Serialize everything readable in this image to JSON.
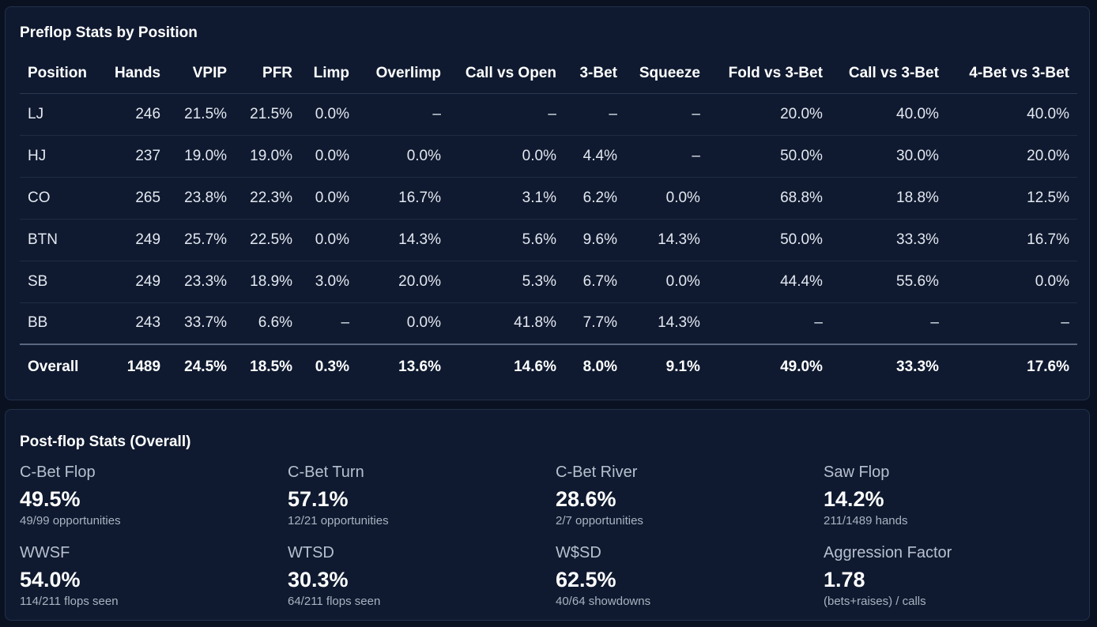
{
  "preflop": {
    "title": "Preflop Stats by Position",
    "columns": [
      "Position",
      "Hands",
      "VPIP",
      "PFR",
      "Limp",
      "Overlimp",
      "Call vs Open",
      "3-Bet",
      "Squeeze",
      "Fold vs 3-Bet",
      "Call vs 3-Bet",
      "4-Bet vs 3-Bet"
    ],
    "rows": [
      [
        "LJ",
        "246",
        "21.5%",
        "21.5%",
        "0.0%",
        "–",
        "–",
        "–",
        "–",
        "20.0%",
        "40.0%",
        "40.0%"
      ],
      [
        "HJ",
        "237",
        "19.0%",
        "19.0%",
        "0.0%",
        "0.0%",
        "0.0%",
        "4.4%",
        "–",
        "50.0%",
        "30.0%",
        "20.0%"
      ],
      [
        "CO",
        "265",
        "23.8%",
        "22.3%",
        "0.0%",
        "16.7%",
        "3.1%",
        "6.2%",
        "0.0%",
        "68.8%",
        "18.8%",
        "12.5%"
      ],
      [
        "BTN",
        "249",
        "25.7%",
        "22.5%",
        "0.0%",
        "14.3%",
        "5.6%",
        "9.6%",
        "14.3%",
        "50.0%",
        "33.3%",
        "16.7%"
      ],
      [
        "SB",
        "249",
        "23.3%",
        "18.9%",
        "3.0%",
        "20.0%",
        "5.3%",
        "6.7%",
        "0.0%",
        "44.4%",
        "55.6%",
        "0.0%"
      ],
      [
        "BB",
        "243",
        "33.7%",
        "6.6%",
        "–",
        "0.0%",
        "41.8%",
        "7.7%",
        "14.3%",
        "–",
        "–",
        "–"
      ]
    ],
    "overall": [
      "Overall",
      "1489",
      "24.5%",
      "18.5%",
      "0.3%",
      "13.6%",
      "14.6%",
      "8.0%",
      "9.1%",
      "49.0%",
      "33.3%",
      "17.6%"
    ]
  },
  "postflop": {
    "title": "Post-flop Stats (Overall)",
    "metrics": [
      {
        "label": "C-Bet Flop",
        "value": "49.5%",
        "sub": "49/99 opportunities"
      },
      {
        "label": "C-Bet Turn",
        "value": "57.1%",
        "sub": "12/21 opportunities"
      },
      {
        "label": "C-Bet River",
        "value": "28.6%",
        "sub": "2/7 opportunities"
      },
      {
        "label": "Saw Flop",
        "value": "14.2%",
        "sub": "211/1489 hands"
      },
      {
        "label": "WWSF",
        "value": "54.0%",
        "sub": "114/211 flops seen"
      },
      {
        "label": "WTSD",
        "value": "30.3%",
        "sub": "64/211 flops seen"
      },
      {
        "label": "W$SD",
        "value": "62.5%",
        "sub": "40/64 showdowns"
      },
      {
        "label": "Aggression Factor",
        "value": "1.78",
        "sub": "(bets+raises) / calls"
      }
    ]
  }
}
